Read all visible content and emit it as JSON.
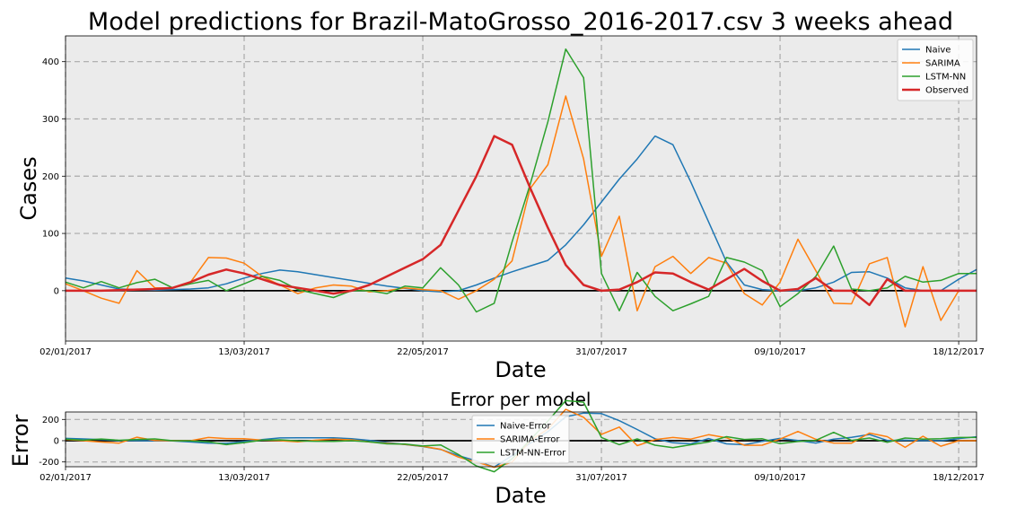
{
  "chart_data": [
    {
      "type": "line",
      "title": "Model predictions for Brazil-MatoGrosso_2016-2017.csv 3 weeks ahead",
      "xlabel": "Date",
      "ylabel": "Cases",
      "x_tick_labels": [
        "02/01/2017",
        "13/03/2017",
        "22/05/2017",
        "31/07/2017",
        "09/10/2017",
        "18/12/2017"
      ],
      "x_tick_weeks": [
        0,
        10,
        20,
        30,
        40,
        50
      ],
      "xlim": [
        0,
        51
      ],
      "yticks": [
        0,
        100,
        200,
        300,
        400
      ],
      "ylim": [
        -88,
        445
      ],
      "grid": true,
      "legend_position": "upper-right",
      "x": [
        0,
        1,
        2,
        3,
        4,
        5,
        6,
        7,
        8,
        9,
        10,
        11,
        12,
        13,
        14,
        15,
        16,
        17,
        18,
        19,
        20,
        21,
        22,
        23,
        24,
        25,
        26,
        27,
        28,
        29,
        30,
        31,
        32,
        33,
        34,
        35,
        36,
        37,
        38,
        39,
        40,
        41,
        42,
        43,
        44,
        45,
        46,
        47,
        48,
        49,
        50,
        51
      ],
      "series": [
        {
          "name": "Naive",
          "color": "#1f77b4",
          "width": 1.5,
          "values": [
            22,
            17,
            10,
            3,
            2,
            1,
            2,
            3,
            5,
            12,
            22,
            30,
            36,
            33,
            28,
            23,
            18,
            13,
            8,
            4,
            0,
            -2,
            0,
            10,
            22,
            33,
            43,
            53,
            80,
            115,
            155,
            195,
            230,
            270,
            255,
            190,
            120,
            50,
            10,
            2,
            0,
            0,
            5,
            15,
            32,
            33,
            22,
            5,
            0,
            0,
            20,
            37
          ]
        },
        {
          "name": "SARIMA",
          "color": "#ff7f0e",
          "width": 1.5,
          "values": [
            12,
            0,
            -13,
            -22,
            35,
            5,
            5,
            15,
            58,
            57,
            48,
            25,
            10,
            -5,
            5,
            10,
            8,
            -2,
            0,
            5,
            2,
            0,
            -15,
            0,
            20,
            52,
            178,
            220,
            340,
            230,
            60,
            130,
            -35,
            42,
            60,
            30,
            58,
            48,
            -5,
            -25,
            15,
            90,
            35,
            -22,
            -23,
            47,
            58,
            -63,
            42,
            -52,
            0,
            0
          ]
        },
        {
          "name": "LSTM-NN",
          "color": "#2ca02c",
          "width": 1.5,
          "values": [
            15,
            5,
            16,
            5,
            14,
            20,
            5,
            12,
            18,
            0,
            12,
            25,
            18,
            2,
            -5,
            -12,
            0,
            0,
            -5,
            8,
            5,
            40,
            10,
            -37,
            -22,
            85,
            185,
            295,
            422,
            372,
            30,
            -35,
            32,
            -10,
            -35,
            -23,
            -10,
            58,
            50,
            35,
            -28,
            -5,
            25,
            78,
            3,
            0,
            5,
            25,
            15,
            18,
            30,
            30
          ]
        },
        {
          "name": "Observed",
          "color": "#d62728",
          "width": 2.5,
          "values": [
            0,
            0,
            0,
            1,
            2,
            3,
            5,
            15,
            28,
            37,
            30,
            20,
            10,
            5,
            0,
            -5,
            0,
            10,
            25,
            40,
            55,
            80,
            140,
            200,
            270,
            255,
            180,
            110,
            45,
            10,
            0,
            2,
            15,
            32,
            30,
            15,
            2,
            20,
            38,
            17,
            0,
            3,
            22,
            0,
            0,
            -25,
            20,
            0,
            0,
            0,
            0,
            0
          ]
        }
      ]
    },
    {
      "type": "line",
      "title": "Error per model",
      "xlabel": "Date",
      "ylabel": "Error",
      "x_tick_labels": [
        "02/01/2017",
        "13/03/2017",
        "22/05/2017",
        "31/07/2017",
        "09/10/2017",
        "18/12/2017"
      ],
      "x_tick_weeks": [
        0,
        10,
        20,
        30,
        40,
        50
      ],
      "xlim": [
        0,
        51
      ],
      "yticks": [
        -200,
        0,
        200
      ],
      "ylim": [
        -245,
        270
      ],
      "grid": true,
      "legend_position": "upper-center",
      "x": [
        0,
        1,
        2,
        3,
        4,
        5,
        6,
        7,
        8,
        9,
        10,
        11,
        12,
        13,
        14,
        15,
        16,
        17,
        18,
        19,
        20,
        21,
        22,
        23,
        24,
        25,
        26,
        27,
        28,
        29,
        30,
        31,
        32,
        33,
        34,
        35,
        36,
        37,
        38,
        39,
        40,
        41,
        42,
        43,
        44,
        45,
        46,
        47,
        48,
        49,
        50,
        51
      ],
      "series": [
        {
          "name": "Naive-Error",
          "color": "#1f77b4",
          "width": 1.5,
          "values": [
            22,
            17,
            10,
            2,
            0,
            -2,
            -3,
            -12,
            -23,
            -25,
            -8,
            10,
            26,
            28,
            28,
            28,
            18,
            3,
            -17,
            -36,
            -55,
            -82,
            -140,
            -190,
            -248,
            -140,
            -25,
            85,
            225,
            260,
            255,
            188,
            105,
            18,
            -20,
            -30,
            20,
            -30,
            -38,
            -6,
            22,
            2,
            -22,
            15,
            32,
            58,
            2,
            5,
            0,
            0,
            20,
            37
          ]
        },
        {
          "name": "SARIMA-Error",
          "color": "#ff7f0e",
          "width": 1.5,
          "values": [
            12,
            0,
            -13,
            -23,
            33,
            2,
            0,
            0,
            30,
            20,
            18,
            5,
            0,
            -10,
            5,
            15,
            8,
            -12,
            -25,
            -35,
            -53,
            -80,
            -155,
            -200,
            -250,
            -203,
            -2,
            110,
            295,
            220,
            60,
            128,
            -47,
            10,
            30,
            15,
            56,
            28,
            -43,
            -42,
            15,
            87,
            13,
            -22,
            -23,
            72,
            38,
            -63,
            42,
            -52,
            0,
            0
          ]
        },
        {
          "name": "LSTM-NN-Error",
          "color": "#2ca02c",
          "width": 1.5,
          "values": [
            15,
            5,
            16,
            4,
            12,
            17,
            0,
            -3,
            -10,
            -37,
            -18,
            5,
            8,
            -3,
            -5,
            -7,
            0,
            -10,
            -30,
            -32,
            -50,
            -40,
            -130,
            -237,
            -292,
            -170,
            5,
            185,
            377,
            362,
            30,
            -37,
            17,
            -42,
            -65,
            -38,
            -12,
            38,
            12,
            18,
            -28,
            -8,
            3,
            78,
            3,
            25,
            -15,
            25,
            15,
            18,
            30,
            30
          ]
        }
      ]
    }
  ]
}
